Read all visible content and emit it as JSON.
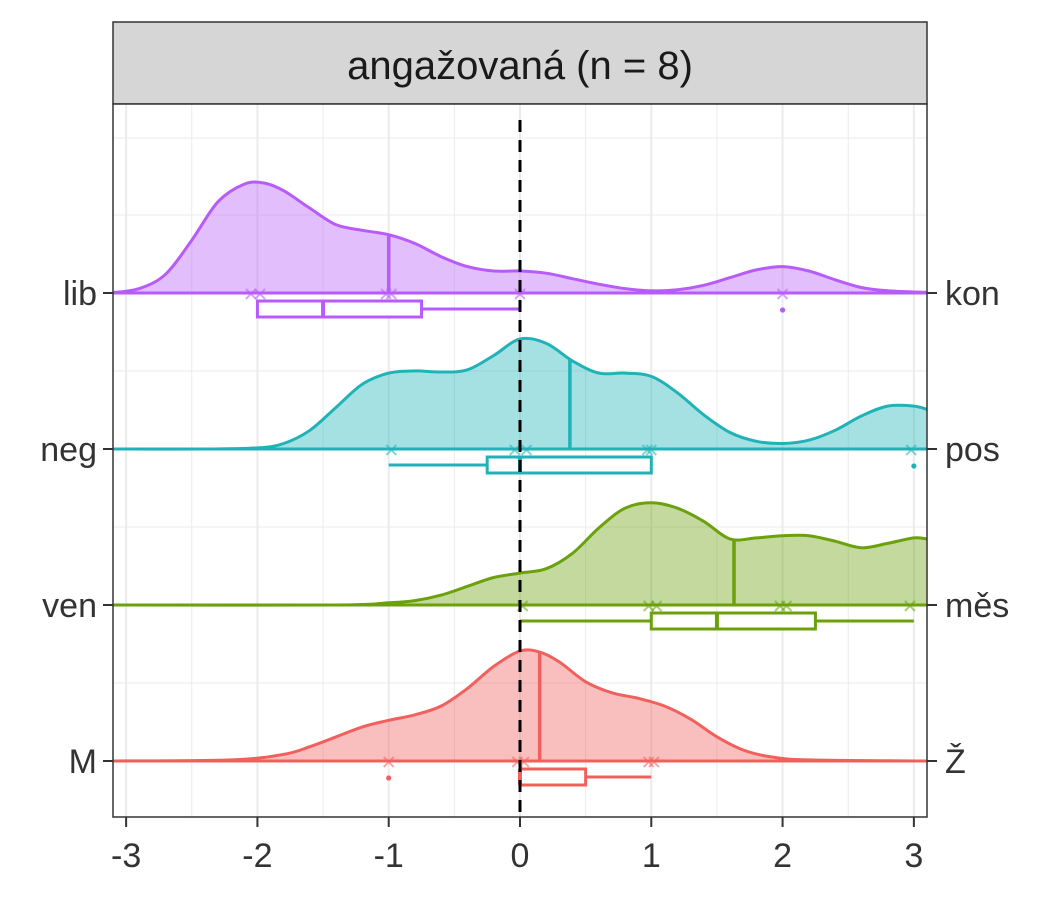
{
  "chart_data": {
    "type": "raincloud",
    "facet_title": "angažovaná (n = 8)",
    "xlim": [
      -3.1,
      3.1
    ],
    "x_ticks": [
      -3,
      -2,
      -1,
      0,
      1,
      2,
      3
    ],
    "x_tick_labels": [
      "-3",
      "-2",
      "-1",
      "0",
      "1",
      "2",
      "3"
    ],
    "reference_line_x": 0,
    "grid": true,
    "rows": [
      {
        "left_label": "lib",
        "right_label": "kon",
        "color": "#B75CFA",
        "density": [
          [
            -3.1,
            0.004
          ],
          [
            -2.9,
            0.04
          ],
          [
            -2.7,
            0.17
          ],
          [
            -2.5,
            0.48
          ],
          [
            -2.3,
            0.83
          ],
          [
            -2.1,
            0.99
          ],
          [
            -1.95,
            1.0
          ],
          [
            -1.8,
            0.93
          ],
          [
            -1.6,
            0.77
          ],
          [
            -1.4,
            0.62
          ],
          [
            -1.2,
            0.57
          ],
          [
            -1.0,
            0.53
          ],
          [
            -0.8,
            0.45
          ],
          [
            -0.6,
            0.33
          ],
          [
            -0.4,
            0.24
          ],
          [
            -0.2,
            0.2
          ],
          [
            0.0,
            0.2
          ],
          [
            0.2,
            0.18
          ],
          [
            0.4,
            0.13
          ],
          [
            0.6,
            0.08
          ],
          [
            0.8,
            0.04
          ],
          [
            1.0,
            0.02
          ],
          [
            1.2,
            0.03
          ],
          [
            1.4,
            0.07
          ],
          [
            1.6,
            0.14
          ],
          [
            1.8,
            0.21
          ],
          [
            2.0,
            0.24
          ],
          [
            2.2,
            0.2
          ],
          [
            2.4,
            0.12
          ],
          [
            2.6,
            0.05
          ],
          [
            2.8,
            0.02
          ],
          [
            3.1,
            0.005
          ]
        ],
        "mean": -1.0,
        "points": [
          -2.05,
          -1.98,
          -1.02,
          -0.98,
          0.0,
          2.0
        ],
        "box": {
          "q1": -2.0,
          "median": -1.5,
          "q3": -0.75,
          "whisker_low": -2.0,
          "whisker_high": 0.0
        },
        "outliers": [
          2.0
        ]
      },
      {
        "left_label": "neg",
        "right_label": "pos",
        "color": "#1FB3B7",
        "density": [
          [
            -3.1,
            0.0
          ],
          [
            -2.4,
            0.0
          ],
          [
            -2.0,
            0.01
          ],
          [
            -1.8,
            0.05
          ],
          [
            -1.6,
            0.17
          ],
          [
            -1.4,
            0.38
          ],
          [
            -1.2,
            0.59
          ],
          [
            -1.0,
            0.69
          ],
          [
            -0.8,
            0.71
          ],
          [
            -0.6,
            0.7
          ],
          [
            -0.4,
            0.72
          ],
          [
            -0.2,
            0.85
          ],
          [
            0.0,
            1.0
          ],
          [
            0.2,
            0.96
          ],
          [
            0.4,
            0.8
          ],
          [
            0.6,
            0.69
          ],
          [
            0.8,
            0.69
          ],
          [
            1.0,
            0.66
          ],
          [
            1.2,
            0.51
          ],
          [
            1.4,
            0.31
          ],
          [
            1.6,
            0.15
          ],
          [
            1.8,
            0.07
          ],
          [
            2.0,
            0.05
          ],
          [
            2.2,
            0.08
          ],
          [
            2.4,
            0.17
          ],
          [
            2.6,
            0.3
          ],
          [
            2.8,
            0.39
          ],
          [
            3.0,
            0.39
          ],
          [
            3.1,
            0.36
          ]
        ],
        "mean": 0.38,
        "points": [
          -0.98,
          -0.04,
          0.05,
          0.97,
          1.0,
          2.98
        ],
        "box": {
          "q1": -0.25,
          "median": 0.0,
          "q3": 1.0,
          "whisker_low": -1.0,
          "whisker_high": 1.0
        },
        "outliers": [
          3.0
        ]
      },
      {
        "left_label": "ven",
        "right_label": "měs",
        "color": "#6BA10C",
        "density": [
          [
            -3.1,
            0.0
          ],
          [
            -1.4,
            0.0
          ],
          [
            -1.0,
            0.02
          ],
          [
            -0.8,
            0.04
          ],
          [
            -0.6,
            0.09
          ],
          [
            -0.4,
            0.17
          ],
          [
            -0.2,
            0.25
          ],
          [
            0.0,
            0.29
          ],
          [
            0.2,
            0.33
          ],
          [
            0.4,
            0.47
          ],
          [
            0.6,
            0.7
          ],
          [
            0.8,
            0.88
          ],
          [
            1.0,
            0.93
          ],
          [
            1.2,
            0.88
          ],
          [
            1.4,
            0.76
          ],
          [
            1.6,
            0.6
          ],
          [
            1.8,
            0.61
          ],
          [
            2.0,
            0.63
          ],
          [
            2.2,
            0.63
          ],
          [
            2.4,
            0.58
          ],
          [
            2.6,
            0.52
          ],
          [
            2.8,
            0.56
          ],
          [
            3.0,
            0.61
          ],
          [
            3.1,
            0.6
          ]
        ],
        "mean": 1.63,
        "points": [
          0.02,
          0.98,
          1.04,
          1.98,
          2.03,
          2.97
        ],
        "box": {
          "q1": 1.0,
          "median": 1.5,
          "q3": 2.25,
          "whisker_low": 0.0,
          "whisker_high": 3.0
        },
        "outliers": []
      },
      {
        "left_label": "M",
        "right_label": "Ž",
        "color": "#F1605D",
        "density": [
          [
            -3.1,
            0.0
          ],
          [
            -2.2,
            0.01
          ],
          [
            -1.8,
            0.06
          ],
          [
            -1.6,
            0.13
          ],
          [
            -1.4,
            0.22
          ],
          [
            -1.2,
            0.31
          ],
          [
            -1.0,
            0.37
          ],
          [
            -0.8,
            0.42
          ],
          [
            -0.6,
            0.5
          ],
          [
            -0.4,
            0.66
          ],
          [
            -0.2,
            0.86
          ],
          [
            0.0,
            1.0
          ],
          [
            0.15,
            0.99
          ],
          [
            0.3,
            0.9
          ],
          [
            0.5,
            0.72
          ],
          [
            0.7,
            0.62
          ],
          [
            0.9,
            0.57
          ],
          [
            1.1,
            0.5
          ],
          [
            1.3,
            0.38
          ],
          [
            1.5,
            0.22
          ],
          [
            1.7,
            0.1
          ],
          [
            1.9,
            0.04
          ],
          [
            2.2,
            0.01
          ],
          [
            3.1,
            0.0
          ]
        ],
        "mean": 0.15,
        "points": [
          -1.0,
          -0.02,
          0.03,
          0.98,
          1.02
        ],
        "box": {
          "q1": 0.0,
          "median": 0.0,
          "q3": 0.5,
          "whisker_low": 0.0,
          "whisker_high": 1.0
        },
        "outliers": [
          -1.0
        ]
      }
    ]
  }
}
